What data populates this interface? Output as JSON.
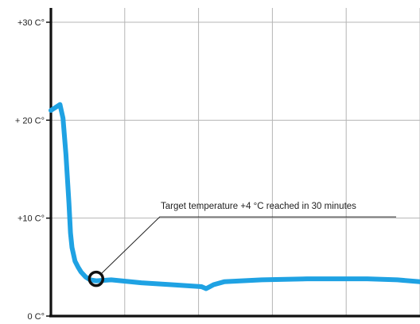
{
  "chart_data": {
    "type": "line",
    "title": "",
    "xlabel": "",
    "ylabel": "",
    "ylim": [
      0,
      30
    ],
    "xlim": [
      0,
      245
    ],
    "grid": true,
    "y_ticks": [
      {
        "value": 30,
        "label": "+30 C°"
      },
      {
        "value": 20,
        "label": "+ 20 C°"
      },
      {
        "value": 10,
        "label": "+10 C°"
      },
      {
        "value": 0,
        "label": "0 C°"
      }
    ],
    "x_gridlines": [
      0,
      49,
      98,
      147,
      196,
      245
    ],
    "series": [
      {
        "color": "#1fa2e3",
        "points": [
          [
            0,
            21.0
          ],
          [
            4,
            21.4
          ],
          [
            6,
            21.6
          ],
          [
            8,
            20.2
          ],
          [
            10,
            16.5
          ],
          [
            12,
            11.5
          ],
          [
            13,
            8.5
          ],
          [
            14,
            7.0
          ],
          [
            16,
            5.6
          ],
          [
            18,
            5.0
          ],
          [
            20,
            4.5
          ],
          [
            23,
            4.0
          ],
          [
            26,
            3.7
          ],
          [
            30,
            3.6
          ],
          [
            40,
            3.7
          ],
          [
            60,
            3.4
          ],
          [
            80,
            3.2
          ],
          [
            100,
            3.0
          ],
          [
            103,
            2.8
          ],
          [
            108,
            3.2
          ],
          [
            115,
            3.5
          ],
          [
            140,
            3.7
          ],
          [
            170,
            3.8
          ],
          [
            210,
            3.8
          ],
          [
            230,
            3.7
          ],
          [
            245,
            3.5
          ]
        ]
      }
    ],
    "annotations": [
      {
        "text": "Target temperature +4 °C reached in 30 minutes",
        "point": [
          30,
          3.8
        ]
      }
    ],
    "marker_color": "#111111"
  }
}
